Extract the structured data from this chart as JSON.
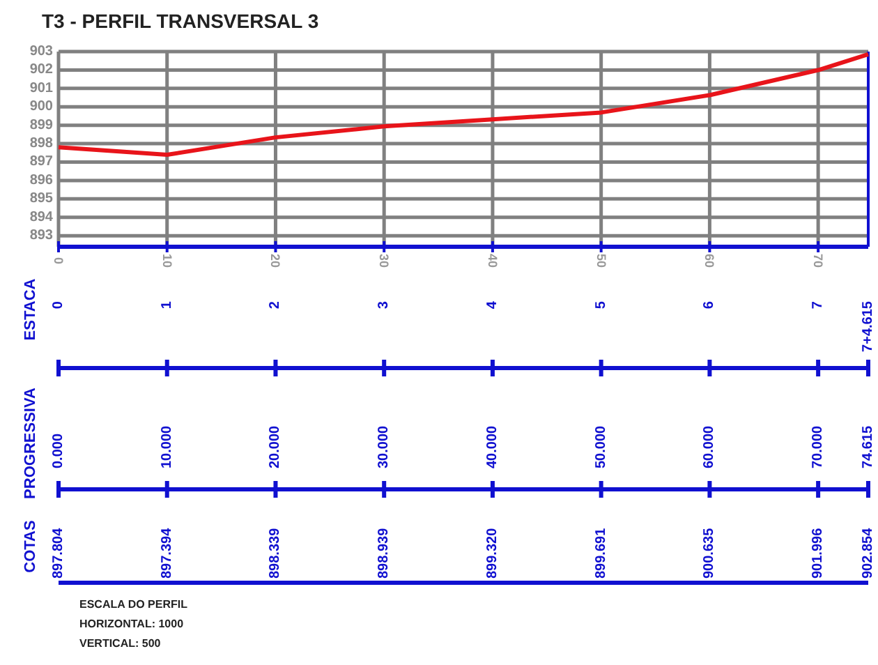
{
  "chart_data": {
    "type": "line",
    "title": "T3 - PERFIL TRANSVERSAL 3",
    "x": [
      0,
      10,
      20,
      30,
      40,
      50,
      60,
      70,
      74.615
    ],
    "series": [
      {
        "color": "#e8141a",
        "values": [
          897.804,
          897.394,
          898.339,
          898.939,
          899.32,
          899.691,
          900.635,
          901.996,
          902.854
        ]
      }
    ],
    "xlim": [
      0,
      74.615
    ],
    "xticks": [
      0,
      10,
      20,
      30,
      40,
      50,
      60,
      70
    ],
    "ylim": [
      892.4,
      903
    ],
    "yticks": [
      893,
      894,
      895,
      896,
      897,
      898,
      899,
      900,
      901,
      902,
      903
    ],
    "grid": true,
    "marker": "none",
    "line_style": "solid",
    "annotations": [
      "ESTACA",
      "0",
      "1",
      "2",
      "3",
      "4",
      "5",
      "6",
      "7",
      "7+4.615",
      "PROGRESSIVA",
      "0.000",
      "10.000",
      "20.000",
      "30.000",
      "40.000",
      "50.000",
      "60.000",
      "70.000",
      "74.615",
      "COTAS",
      "897.804",
      "897.394",
      "898.339",
      "898.939",
      "899.320",
      "899.691",
      "900.635",
      "901.996",
      "902.854",
      "ESCALA DO PERFIL",
      "HORIZONTAL: 1000",
      "VERTICAL: 500"
    ]
  }
}
